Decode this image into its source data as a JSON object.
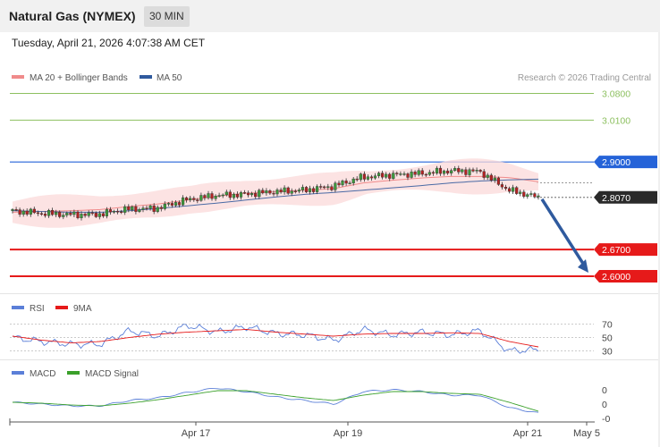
{
  "header": {
    "title": "Natural Gas (NYMEX)",
    "interval": "30 MIN",
    "timestamp": "Tuesday, April 21, 2026 4:07:38 AM CET"
  },
  "legend": {
    "ma20": "MA 20 + Bollinger Bands",
    "ma50": "MA 50",
    "rsi": "RSI",
    "rsi_ma": "9MA",
    "macd": "MACD",
    "macd_signal": "MACD Signal"
  },
  "copyright": "Research © 2026 Trading Central",
  "colors": {
    "ma20": "#f08b8b",
    "ma50": "#4a6aa5",
    "bollinger_fill": "#fbdada",
    "resistance_green": "#8dc060",
    "pivot_blue": "#2563d8",
    "support_red": "#e61a1a",
    "arrow": "#2f5a9e",
    "rsi": "#5b7fd8",
    "rsi_ma": "#e61a1a",
    "macd": "#5b7fd8",
    "macd_signal": "#3aa02a",
    "candle_up": "#3c9a3c",
    "candle_down": "#b22222"
  },
  "chart_data": [
    {
      "type": "candlestick",
      "panel": "price",
      "y_range": [
        2.56,
        3.1
      ],
      "x_range": [
        "Apr 15",
        "May 5"
      ],
      "x_ticks": [
        "Apr 17",
        "Apr 19",
        "Apr 21",
        "May 5"
      ],
      "series_ma20": [
        2.768,
        2.77,
        2.772,
        2.775,
        2.783,
        2.79,
        2.8,
        2.81,
        2.818,
        2.822,
        2.826,
        2.83,
        2.845,
        2.852,
        2.858,
        2.862,
        2.862,
        2.859,
        2.848
      ],
      "series_ma50": [
        2.772,
        2.77,
        2.768,
        2.768,
        2.772,
        2.778,
        2.785,
        2.792,
        2.8,
        2.808,
        2.815,
        2.82,
        2.826,
        2.832,
        2.838,
        2.845,
        2.85,
        2.853,
        2.855
      ],
      "close": [
        2.772,
        2.766,
        2.762,
        2.762,
        2.776,
        2.778,
        2.8,
        2.812,
        2.815,
        2.822,
        2.826,
        2.836,
        2.86,
        2.866,
        2.87,
        2.877,
        2.875,
        2.826,
        2.807
      ],
      "levels": [
        {
          "label": "3.0800",
          "value": 3.08,
          "kind": "resistance"
        },
        {
          "label": "3.0100",
          "value": 3.01,
          "kind": "resistance"
        },
        {
          "label": "2.9000",
          "value": 2.9,
          "kind": "pivot"
        },
        {
          "label": "2.8070",
          "value": 2.807,
          "kind": "last"
        },
        {
          "label": "2.6700",
          "value": 2.67,
          "kind": "support"
        },
        {
          "label": "2.6000",
          "value": 2.6,
          "kind": "support"
        }
      ],
      "forecast_arrow": {
        "from": 2.807,
        "to": 2.6
      }
    },
    {
      "type": "line",
      "panel": "rsi",
      "y_range": [
        20,
        80
      ],
      "y_ticks": [
        "70",
        "50",
        "30"
      ],
      "series": [
        {
          "name": "RSI",
          "values": [
            50,
            44,
            40,
            40,
            60,
            52,
            68,
            58,
            66,
            56,
            54,
            46,
            62,
            54,
            58,
            54,
            60,
            30,
            32
          ]
        },
        {
          "name": "9MA",
          "values": [
            52,
            46,
            42,
            44,
            50,
            55,
            58,
            60,
            62,
            58,
            55,
            52,
            55,
            56,
            56,
            57,
            56,
            44,
            36
          ]
        }
      ]
    },
    {
      "type": "line",
      "panel": "macd",
      "y_ticks": [
        "0",
        "0",
        "-0"
      ],
      "series": [
        {
          "name": "MACD",
          "values": [
            0.0,
            -0.002,
            -0.004,
            -0.004,
            0.002,
            0.005,
            0.011,
            0.016,
            0.012,
            0.006,
            0.002,
            -0.002,
            0.012,
            0.014,
            0.012,
            0.008,
            0.008,
            -0.006,
            -0.012
          ]
        },
        {
          "name": "MACD Signal",
          "values": [
            0.0,
            -0.001,
            -0.003,
            -0.004,
            -0.001,
            0.003,
            0.008,
            0.013,
            0.013,
            0.009,
            0.005,
            0.002,
            0.008,
            0.012,
            0.012,
            0.01,
            0.009,
            0.0,
            -0.01
          ]
        }
      ]
    }
  ]
}
